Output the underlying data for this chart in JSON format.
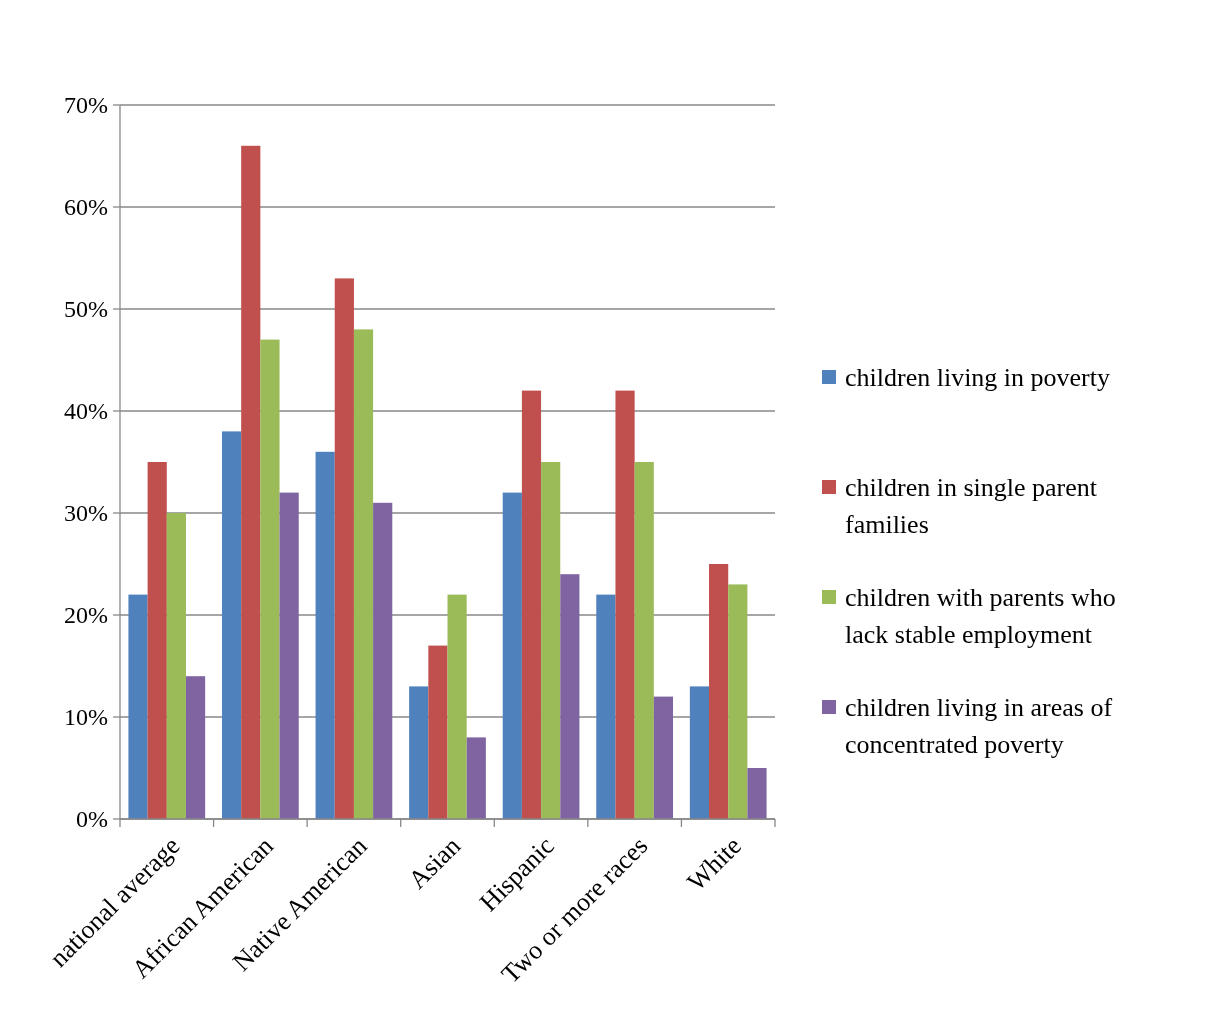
{
  "chart_data": {
    "type": "bar",
    "categories": [
      "national average",
      "African American",
      "Native American",
      "Asian",
      "Hispanic",
      "Two or more races",
      "White"
    ],
    "series": [
      {
        "name": "children living in poverty",
        "color": "#4f81bd",
        "values": [
          22,
          38,
          36,
          13,
          32,
          22,
          13
        ]
      },
      {
        "name": "children in single parent families",
        "color": "#c0504d",
        "values": [
          35,
          66,
          53,
          17,
          42,
          42,
          25
        ]
      },
      {
        "name": "children with parents who lack stable employment",
        "color": "#9bbb59",
        "values": [
          30,
          47,
          48,
          22,
          35,
          35,
          23
        ]
      },
      {
        "name": "children living in areas of concentrated poverty",
        "color": "#8064a2",
        "values": [
          14,
          32,
          31,
          8,
          24,
          12,
          5
        ]
      }
    ],
    "ylim": [
      0,
      70
    ],
    "yticks": [
      {
        "value": 0,
        "label": "0%"
      },
      {
        "value": 10,
        "label": "10%"
      },
      {
        "value": 20,
        "label": "20%"
      },
      {
        "value": 30,
        "label": "30%"
      },
      {
        "value": 40,
        "label": "40%"
      },
      {
        "value": 50,
        "label": "50%"
      },
      {
        "value": 60,
        "label": "60%"
      },
      {
        "value": 70,
        "label": "70%"
      }
    ],
    "grid": "y",
    "legend": "right"
  }
}
